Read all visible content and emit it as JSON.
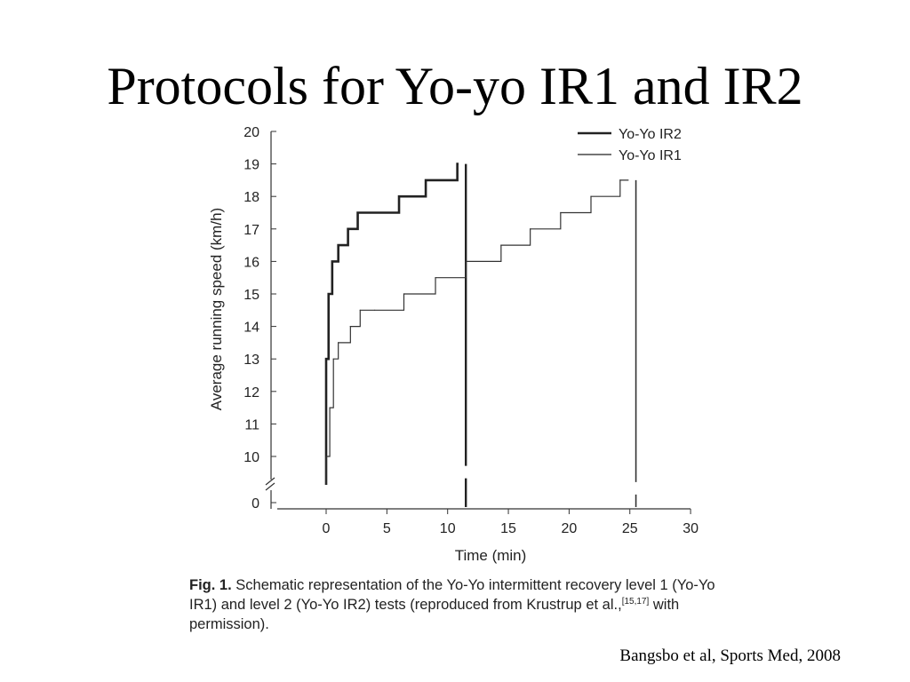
{
  "slide": {
    "title": "Protocols for Yo-yo IR1 and IR2",
    "source": "Bangsbo et al, Sports Med, 2008"
  },
  "caption": {
    "label": "Fig. 1.",
    "text_before_ref": "Schematic representation of the Yo-Yo intermittent recovery level 1 (Yo-Yo IR1) and level 2 (Yo-Yo IR2) tests (reproduced from Krustrup et al.,",
    "ref": "[15,17]",
    "text_after_ref": " with permission)."
  },
  "chart_data": {
    "type": "line",
    "xlabel": "Time (min)",
    "ylabel": "Average running speed (km/h)",
    "xlim": [
      -4,
      30
    ],
    "ylim": [
      10,
      20
    ],
    "y_break": true,
    "y_break_value": 0,
    "x_ticks": [
      0,
      5,
      10,
      15,
      20,
      25,
      30
    ],
    "y_ticks": [
      0,
      10,
      11,
      12,
      13,
      14,
      15,
      16,
      17,
      18,
      19,
      20
    ],
    "legend_position": "top-right",
    "series": [
      {
        "name": "Yo-Yo IR2",
        "style": "thick",
        "end_time": 11.5,
        "steps": [
          {
            "t": 0,
            "v": 13
          },
          {
            "t": 0.2,
            "v": 15
          },
          {
            "t": 0.5,
            "v": 16
          },
          {
            "t": 1.0,
            "v": 16.5
          },
          {
            "t": 1.8,
            "v": 17
          },
          {
            "t": 2.6,
            "v": 17.5
          },
          {
            "t": 3.6,
            "v": 17.5
          },
          {
            "t": 6.0,
            "v": 18
          },
          {
            "t": 8.2,
            "v": 18.5
          },
          {
            "t": 10.8,
            "v": 19
          }
        ]
      },
      {
        "name": "Yo-Yo IR1",
        "style": "thin",
        "end_time": 25.5,
        "steps": [
          {
            "t": 0,
            "v": 10
          },
          {
            "t": 0.3,
            "v": 11.5
          },
          {
            "t": 0.6,
            "v": 13
          },
          {
            "t": 1.0,
            "v": 13.5
          },
          {
            "t": 2.0,
            "v": 14
          },
          {
            "t": 2.8,
            "v": 14.5
          },
          {
            "t": 4.0,
            "v": 14.5
          },
          {
            "t": 6.4,
            "v": 15
          },
          {
            "t": 9.0,
            "v": 15.5
          },
          {
            "t": 11.5,
            "v": 16
          },
          {
            "t": 14.4,
            "v": 16.5
          },
          {
            "t": 16.8,
            "v": 17
          },
          {
            "t": 19.3,
            "v": 17.5
          },
          {
            "t": 21.8,
            "v": 18
          },
          {
            "t": 24.2,
            "v": 18.5
          }
        ]
      }
    ]
  }
}
